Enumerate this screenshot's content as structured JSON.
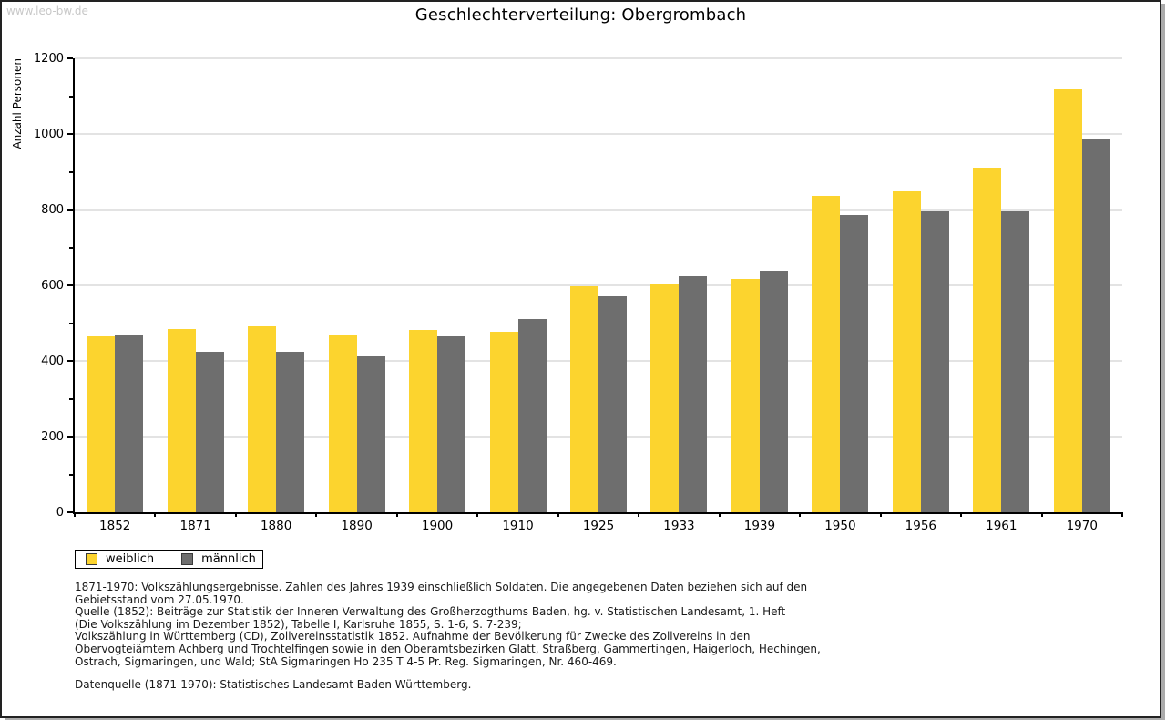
{
  "watermark": "www.leo-bw.de",
  "title": "Geschlechterverteilung: Obergrombach",
  "chart_data": {
    "type": "bar",
    "title": "Geschlechterverteilung: Obergrombach",
    "xlabel": "",
    "ylabel": "Anzahl Personen",
    "ylim": [
      0,
      1200
    ],
    "ytick_major_step": 200,
    "ytick_minor_step": 100,
    "grid": true,
    "legend_position": "bottom-left",
    "categories": [
      "1852",
      "1871",
      "1880",
      "1890",
      "1900",
      "1910",
      "1925",
      "1933",
      "1939",
      "1950",
      "1956",
      "1961",
      "1970"
    ],
    "series": [
      {
        "name": "weiblich",
        "color": "#FCD42E",
        "values": [
          464,
          485,
          492,
          470,
          483,
          478,
          597,
          602,
          616,
          836,
          851,
          912,
          1118
        ]
      },
      {
        "name": "männlich",
        "color": "#6E6E6E",
        "values": [
          469,
          425,
          425,
          413,
          466,
          510,
          571,
          625,
          639,
          785,
          797,
          795,
          986
        ]
      }
    ]
  },
  "footnotes": {
    "block1": [
      "1871-1970: Volkszählungsergebnisse. Zahlen des Jahres 1939 einschließlich Soldaten. Die angegebenen Daten beziehen sich auf den",
      "Gebietsstand vom 27.05.1970.",
      "Quelle (1852): Beiträge zur Statistik der Inneren Verwaltung des Großherzogthums Baden, hg. v. Statistischen Landesamt, 1. Heft",
      "(Die Volkszählung im Dezember 1852), Tabelle I, Karlsruhe 1855, S. 1-6, S. 7-239;",
      "Volkszählung in Württemberg (CD), Zollvereinsstatistik 1852. Aufnahme der Bevölkerung für Zwecke des Zollvereins in den",
      "Obervogteiämtern Achberg und Trochtelfingen sowie in den Oberamtsbezirken Glatt, Straßberg, Gammertingen, Haigerloch, Hechingen,",
      "Ostrach, Sigmaringen, und Wald; StA Sigmaringen Ho 235 T 4-5 Pr. Reg. Sigmaringen, Nr. 460-469."
    ],
    "block2": "Datenquelle (1871-1970): Statistisches Landesamt Baden-Württemberg."
  },
  "colors": {
    "weiblich": "#FCD42E",
    "männlich": "#6E6E6E",
    "grid": "#E3E3E3",
    "axis": "#000000",
    "watermark": "#C8C8C8",
    "frame_border": "#222222"
  }
}
